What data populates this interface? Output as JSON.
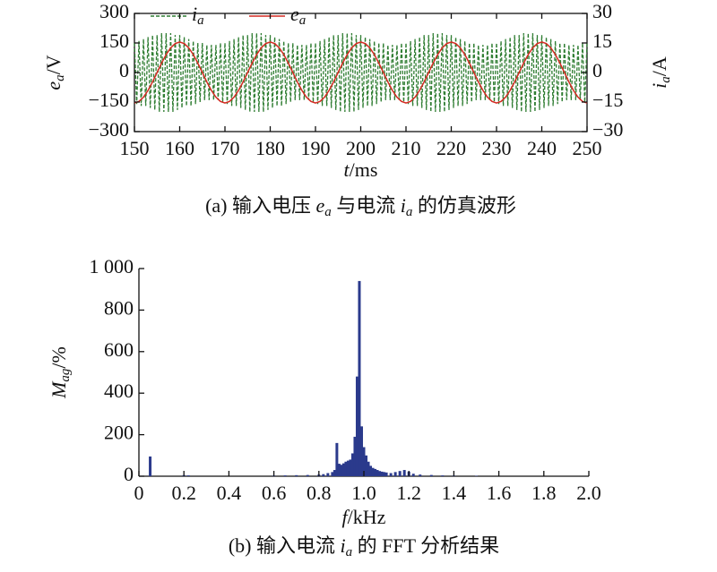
{
  "chart_data": [
    {
      "type": "line",
      "frame": "box",
      "legend": "upper left",
      "xlim": [
        150,
        250
      ],
      "xticks": [
        150,
        160,
        170,
        180,
        190,
        200,
        210,
        220,
        230,
        240,
        250
      ],
      "ylim": [
        -300,
        300
      ],
      "yticks": [
        {
          "value": -300,
          "label": "−300"
        },
        {
          "value": -150,
          "label": "−150"
        },
        0,
        150,
        300
      ],
      "y2lim": [
        -30,
        30
      ],
      "y2ticks": [
        {
          "value": -30,
          "label": "−30"
        },
        {
          "value": -15,
          "label": "−15"
        },
        0,
        15,
        30
      ],
      "x_label": {
        "main": "t",
        "unit": "/ms"
      },
      "y_label": {
        "main": "e",
        "sub": "a",
        "unit": "/V"
      },
      "y2_label": {
        "main": "i",
        "sub": "a",
        "unit": "/A"
      },
      "caption": [
        {
          "text": "(a) 输入电压 "
        },
        {
          "text": "e",
          "style": "italic"
        },
        {
          "text": "a",
          "style": "sub"
        },
        {
          "text": " 与电流 "
        },
        {
          "text": "i",
          "style": "italic"
        },
        {
          "text": "a",
          "style": "sub"
        },
        {
          "text": " 的仿真波形"
        }
      ],
      "series": [
        {
          "name": {
            "main": "i",
            "sub": "a"
          },
          "color": "#2f7d32",
          "dash": true,
          "axis": "y2",
          "x": [
            150,
            150.5,
            151,
            151.5,
            152,
            152.5,
            153,
            153.5,
            154,
            154.5,
            155,
            155.5,
            156,
            156.5,
            157,
            157.5,
            158,
            158.5,
            159,
            159.5,
            160,
            160.5,
            161,
            161.5,
            162,
            162.5,
            163,
            163.5,
            164,
            164.5,
            165,
            165.5,
            166,
            166.5,
            167,
            167.5,
            168,
            168.5,
            169,
            169.5,
            170,
            170.5,
            171,
            171.5,
            172,
            172.5,
            173,
            173.5,
            174,
            174.5,
            175,
            175.5,
            176,
            176.5,
            177,
            177.5,
            178,
            178.5,
            179,
            179.5,
            180,
            180.5,
            181,
            181.5,
            182,
            182.5,
            183,
            183.5,
            184,
            184.5,
            185,
            185.5,
            186,
            186.5,
            187,
            187.5,
            188,
            188.5,
            189,
            189.5,
            190,
            190.5,
            191,
            191.5,
            192,
            192.5,
            193,
            193.5,
            194,
            194.5,
            195,
            195.5,
            196,
            196.5,
            197,
            197.5,
            198,
            198.5,
            199,
            199.5,
            200,
            200.5,
            201,
            201.5,
            202,
            202.5,
            203,
            203.5,
            204,
            204.5,
            205,
            205.5,
            206,
            206.5,
            207,
            207.5,
            208,
            208.5,
            209,
            209.5,
            210,
            210.5,
            211,
            211.5,
            212,
            212.5,
            213,
            213.5,
            214,
            214.5,
            215,
            215.5,
            216,
            216.5,
            217,
            217.5,
            218,
            218.5,
            219,
            219.5,
            220,
            220.5,
            221,
            221.5,
            222,
            222.5,
            223,
            223.5,
            224,
            224.5,
            225,
            225.5,
            226,
            226.5,
            227,
            227.5,
            228,
            228.5,
            229,
            229.5,
            230,
            230.5,
            231,
            231.5,
            232,
            232.5,
            233,
            233.5,
            234,
            234.5,
            235,
            235.5,
            236,
            236.5,
            237,
            237.5,
            238,
            238.5,
            239,
            239.5,
            240,
            240.5,
            241,
            241.5,
            242,
            242.5,
            243,
            243.5,
            244,
            244.5,
            245,
            245.5,
            246,
            246.5,
            247,
            247.5,
            248,
            248.5,
            249,
            249.5,
            250
          ],
          "values": [
            15,
            -16,
            16,
            -17,
            17,
            -17,
            18,
            -18,
            19,
            -19,
            19,
            -20,
            20,
            -20,
            20,
            -20,
            20,
            -20,
            19,
            -19,
            19,
            -18,
            18,
            -17,
            17,
            -17,
            16,
            -16,
            15,
            -15,
            15,
            -14,
            14,
            -14,
            14,
            -14,
            14,
            -14,
            15,
            -15,
            15,
            -16,
            16,
            -17,
            17,
            -17,
            18,
            -18,
            19,
            -19,
            19,
            -20,
            20,
            -20,
            20,
            -20,
            20,
            -20,
            19,
            -19,
            19,
            -18,
            18,
            -17,
            17,
            -17,
            16,
            -16,
            15,
            -15,
            15,
            -14,
            14,
            -14,
            14,
            -14,
            14,
            -14,
            15,
            -15,
            15,
            -16,
            16,
            -17,
            17,
            -17,
            18,
            -18,
            19,
            -19,
            19,
            -20,
            20,
            -20,
            20,
            -20,
            20,
            -20,
            19,
            -19,
            19,
            -18,
            18,
            -17,
            17,
            -17,
            16,
            -16,
            15,
            -15,
            15,
            -14,
            14,
            -14,
            14,
            -14,
            14,
            -14,
            15,
            -15,
            15,
            -16,
            16,
            -17,
            17,
            -17,
            18,
            -18,
            19,
            -19,
            19,
            -20,
            20,
            -20,
            20,
            -20,
            20,
            -20,
            19,
            -19,
            19,
            -18,
            18,
            -17,
            17,
            -17,
            16,
            -16,
            15,
            -15,
            15,
            -14,
            14,
            -14,
            14,
            -14,
            14,
            -14,
            15,
            -15,
            15,
            -16,
            16,
            -17,
            17,
            -17,
            18,
            -18,
            19,
            -19,
            19,
            -20,
            20,
            -20,
            20,
            -20,
            20,
            -20,
            19,
            -19,
            19,
            -18,
            18,
            -17,
            17,
            -17,
            16,
            -16,
            15,
            -15,
            15,
            -14,
            14,
            -14,
            14,
            -14,
            14,
            -14,
            15,
            -15,
            15
          ]
        },
        {
          "name": {
            "main": "e",
            "sub": "a"
          },
          "color": "#d42a22",
          "x": [
            150,
            151,
            152,
            153,
            154,
            155,
            156,
            157,
            158,
            159,
            160,
            161,
            162,
            163,
            164,
            165,
            166,
            167,
            168,
            169,
            170,
            171,
            172,
            173,
            174,
            175,
            176,
            177,
            178,
            179,
            180,
            181,
            182,
            183,
            184,
            185,
            186,
            187,
            188,
            189,
            190,
            191,
            192,
            193,
            194,
            195,
            196,
            197,
            198,
            199,
            200,
            201,
            202,
            203,
            204,
            205,
            206,
            207,
            208,
            209,
            210,
            211,
            212,
            213,
            214,
            215,
            216,
            217,
            218,
            219,
            220,
            221,
            222,
            223,
            224,
            225,
            226,
            227,
            228,
            229,
            230,
            231,
            232,
            233,
            234,
            235,
            236,
            237,
            238,
            239,
            240,
            241,
            242,
            243,
            244,
            245,
            246,
            247,
            248,
            249,
            250
          ],
          "values": [
            -155,
            -147,
            -125,
            -91,
            -48,
            0,
            48,
            91,
            125,
            147,
            155,
            147,
            125,
            91,
            48,
            0,
            -48,
            -91,
            -125,
            -147,
            -155,
            -147,
            -125,
            -91,
            -48,
            0,
            48,
            91,
            125,
            147,
            155,
            147,
            125,
            91,
            48,
            0,
            -48,
            -91,
            -125,
            -147,
            -155,
            -147,
            -125,
            -91,
            -48,
            0,
            48,
            91,
            125,
            147,
            155,
            147,
            125,
            91,
            48,
            0,
            -48,
            -91,
            -125,
            -147,
            -155,
            -147,
            -125,
            -91,
            -48,
            0,
            48,
            91,
            125,
            147,
            155,
            147,
            125,
            91,
            48,
            0,
            -48,
            -91,
            -125,
            -147,
            -155,
            -147,
            -125,
            -91,
            -48,
            0,
            48,
            91,
            125,
            147,
            155,
            147,
            125,
            91,
            48,
            0,
            -48,
            -91,
            -125,
            -147,
            -155
          ]
        }
      ]
    },
    {
      "type": "bar",
      "frame": "open",
      "color": "#2b3a8c",
      "xlim": [
        0,
        2
      ],
      "xticks": [
        0,
        0.2,
        0.4,
        0.6,
        0.8,
        {
          "value": 1,
          "label": "1.0"
        },
        1.2,
        1.4,
        1.6,
        1.8,
        {
          "value": 2,
          "label": "2.0"
        }
      ],
      "ylim": [
        0,
        1000
      ],
      "yticks": [
        0,
        200,
        400,
        600,
        800,
        {
          "value": 1000,
          "label": "1 000"
        }
      ],
      "x_label": {
        "main": "f",
        "unit": "/kHz"
      },
      "y_label": {
        "main": "M",
        "sub": "ag",
        "unit": "/%"
      },
      "caption": [
        {
          "text": "(b) 输入电流 "
        },
        {
          "text": "i",
          "style": "italic"
        },
        {
          "text": "a",
          "style": "sub"
        },
        {
          "text": " 的 FFT 分析结果"
        }
      ],
      "x": [
        0.05,
        0.2,
        0.22,
        0.6,
        0.65,
        0.7,
        0.75,
        0.8,
        0.82,
        0.84,
        0.86,
        0.87,
        0.88,
        0.89,
        0.9,
        0.91,
        0.92,
        0.93,
        0.94,
        0.95,
        0.96,
        0.97,
        0.98,
        0.99,
        1.0,
        1.01,
        1.02,
        1.03,
        1.04,
        1.05,
        1.06,
        1.07,
        1.08,
        1.09,
        1.1,
        1.12,
        1.14,
        1.16,
        1.18,
        1.2,
        1.22,
        1.25,
        1.3,
        1.35,
        1.4,
        1.5
      ],
      "values": [
        95,
        5,
        4,
        3,
        4,
        5,
        6,
        8,
        10,
        15,
        20,
        30,
        160,
        60,
        55,
        62,
        70,
        75,
        80,
        110,
        190,
        480,
        940,
        240,
        140,
        100,
        70,
        50,
        40,
        35,
        30,
        25,
        22,
        20,
        18,
        15,
        20,
        25,
        30,
        22,
        12,
        8,
        6,
        4,
        3,
        2
      ]
    }
  ]
}
